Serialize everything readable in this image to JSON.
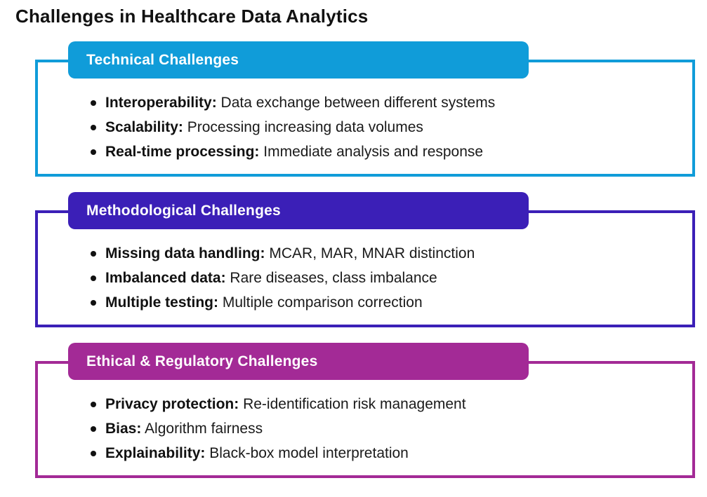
{
  "page": {
    "title": "Challenges in Healthcare Data Analytics"
  },
  "separator": ":",
  "sections": [
    {
      "header": "Technical Challenges",
      "color": "#109CD9",
      "items": [
        {
          "term": "Interoperability",
          "desc": "Data exchange between different systems"
        },
        {
          "term": "Scalability",
          "desc": "Processing increasing data volumes"
        },
        {
          "term": "Real-time processing",
          "desc": "Immediate analysis and response"
        }
      ]
    },
    {
      "header": "Methodological Challenges",
      "color": "#3B1FB7",
      "items": [
        {
          "term": "Missing data handling",
          "desc": "MCAR, MAR, MNAR distinction"
        },
        {
          "term": "Imbalanced data",
          "desc": "Rare diseases, class imbalance"
        },
        {
          "term": "Multiple testing",
          "desc": "Multiple comparison correction"
        }
      ]
    },
    {
      "header": "Ethical & Regulatory Challenges",
      "color": "#A32A96",
      "items": [
        {
          "term": "Privacy protection",
          "desc": "Re-identification risk management"
        },
        {
          "term": "Bias",
          "desc": "Algorithm fairness"
        },
        {
          "term": "Explainability",
          "desc": "Black-box model interpretation"
        }
      ]
    }
  ]
}
